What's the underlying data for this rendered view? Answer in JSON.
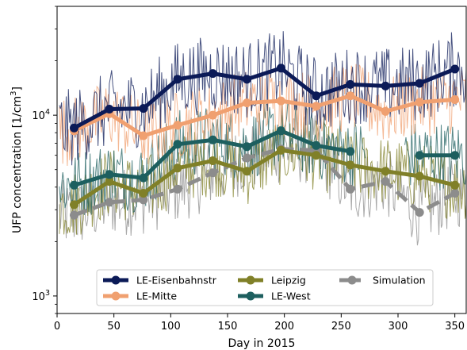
{
  "chart_data": {
    "type": "line",
    "xlabel": "Day in 2015",
    "ylabel_main": "UFP concentration [1/cm",
    "ylabel_sup": "3",
    "ylabel_close": "]",
    "xlim": [
      0,
      360
    ],
    "ylim": [
      800,
      40000
    ],
    "yscale": "log",
    "grid": false,
    "legend_position": "bottom-center",
    "x_ticks": [
      0,
      50,
      100,
      150,
      200,
      250,
      300,
      350
    ],
    "y_ticks": [
      {
        "value": 1000,
        "base": "10",
        "exp": "3"
      },
      {
        "value": 10000,
        "base": "10",
        "exp": "4"
      }
    ],
    "series": [
      {
        "name": "LE-Eisenbahnstr",
        "color": "#0b1a57",
        "style": "solid",
        "x": [
          15,
          46,
          76,
          106,
          137,
          167,
          197,
          228,
          258,
          289,
          319,
          350
        ],
        "y": [
          8500,
          10800,
          10900,
          15800,
          17000,
          15800,
          18200,
          12800,
          14800,
          14500,
          15000,
          18000
        ]
      },
      {
        "name": "LE-Mitte",
        "color": "#f0a070",
        "style": "solid",
        "x": [
          15,
          46,
          76,
          106,
          137,
          167,
          197,
          228,
          258,
          289,
          319,
          350
        ],
        "y": [
          8200,
          10200,
          7700,
          8800,
          10000,
          11700,
          12000,
          11200,
          12800,
          10500,
          11800,
          12200
        ]
      },
      {
        "name": "Leipzig",
        "color": "#808028",
        "style": "solid",
        "x": [
          15,
          46,
          76,
          106,
          137,
          167,
          197,
          228,
          258,
          289,
          319,
          350
        ],
        "y": [
          3200,
          4300,
          3700,
          5100,
          5600,
          4900,
          6400,
          6000,
          5300,
          4900,
          4600,
          4100
        ]
      },
      {
        "name": "LE-West",
        "color": "#1d5f5f",
        "style": "solid",
        "segments": [
          {
            "x": [
              15,
              46,
              76,
              106,
              137,
              167,
              197,
              228,
              258
            ],
            "y": [
              4100,
              4700,
              4500,
              6900,
              7300,
              6700,
              8200,
              6800,
              6300
            ]
          },
          {
            "x": [
              319,
              350
            ],
            "y": [
              6000,
              6000
            ]
          }
        ]
      },
      {
        "name": "Simulation",
        "color": "#8c8c8c",
        "style": "dashed",
        "x": [
          15,
          46,
          76,
          106,
          137,
          167,
          197,
          228,
          258,
          289,
          319,
          350
        ],
        "y": [
          2800,
          3300,
          3400,
          3900,
          4800,
          5800,
          6500,
          6400,
          3900,
          4300,
          2900,
          3700
        ]
      }
    ],
    "legend": {
      "columns": [
        [
          "LE-Eisenbahnstr",
          "LE-Mitte"
        ],
        [
          "Leipzig",
          "LE-West"
        ],
        [
          "Simulation"
        ]
      ]
    }
  }
}
